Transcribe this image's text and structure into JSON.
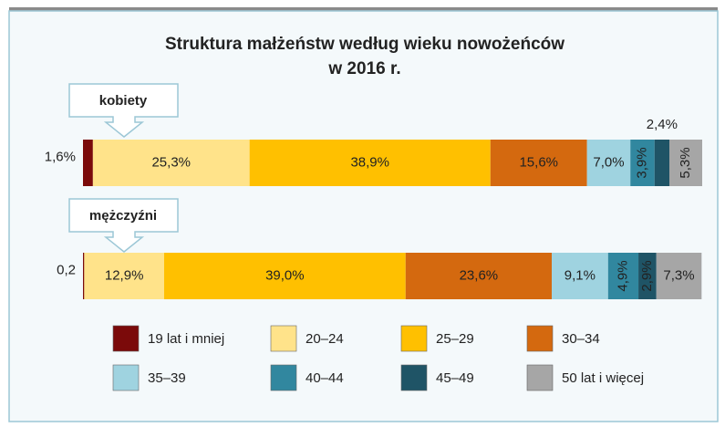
{
  "chart_data": {
    "type": "stacked-bar-horizontal",
    "title": [
      "Struktura małżeństw według wieku nowożeńców",
      "w 2016 r."
    ],
    "categories": [
      "kobiety",
      "mężczyźni"
    ],
    "xlim": [
      0,
      100
    ],
    "series": [
      {
        "name": "19 lat i mniej",
        "color": "#7b0a0a",
        "values": [
          1.6,
          0.2
        ],
        "value_labels": [
          "1,6%",
          "0,2"
        ]
      },
      {
        "name": "20–24",
        "color": "#ffe38a",
        "values": [
          25.3,
          12.9
        ],
        "value_labels": [
          "25,3%",
          "12,9%"
        ]
      },
      {
        "name": "25–29",
        "color": "#ffc000",
        "values": [
          38.9,
          39.0
        ],
        "value_labels": [
          "38,9%",
          "39,0%"
        ]
      },
      {
        "name": "30–34",
        "color": "#d4690f",
        "values": [
          15.6,
          23.6
        ],
        "value_labels": [
          "15,6%",
          "23,6%"
        ]
      },
      {
        "name": "35–39",
        "color": "#9fd3e0",
        "values": [
          7.0,
          9.1
        ],
        "value_labels": [
          "7,0%",
          "9,1%"
        ]
      },
      {
        "name": "40–44",
        "color": "#31879f",
        "values": [
          3.9,
          4.9
        ],
        "value_labels": [
          "3,9%",
          "4,9%"
        ]
      },
      {
        "name": "45–49",
        "color": "#1f5466",
        "values": [
          2.4,
          2.9
        ],
        "value_labels": [
          "2,4%",
          "2,9%"
        ]
      },
      {
        "name": "50 lat i więcej",
        "color": "#a6a6a6",
        "values": [
          5.3,
          7.3
        ],
        "value_labels": [
          "5,3%",
          "7,3%"
        ]
      }
    ]
  }
}
